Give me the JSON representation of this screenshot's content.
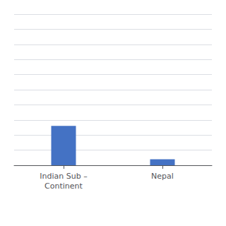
{
  "chart_data": {
    "type": "bar",
    "categories": [
      "Indian Sub –\nContinent",
      "Nepal"
    ],
    "values": [
      26,
      4
    ],
    "color": "#4472C4",
    "ylim": [
      0,
      100
    ],
    "yticks": [
      0,
      10,
      20,
      30,
      40,
      50,
      60,
      70,
      80,
      90,
      100
    ],
    "grid": true,
    "tick_labels": "x"
  }
}
